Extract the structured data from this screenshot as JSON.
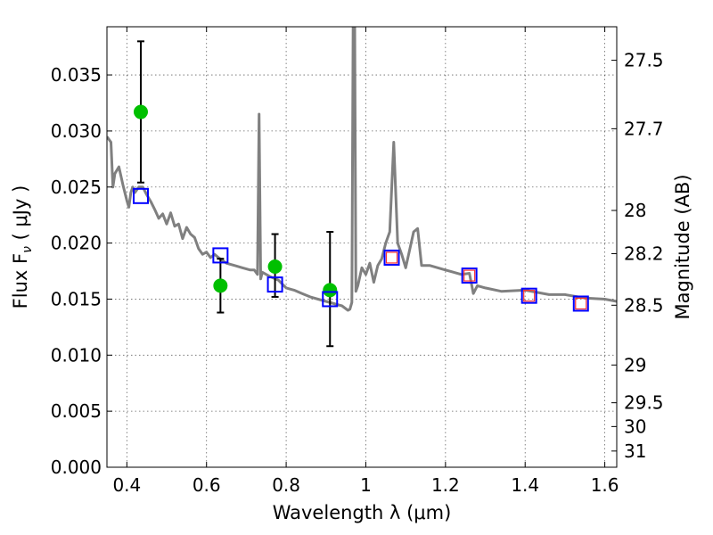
{
  "chart_data": {
    "type": "scatter",
    "xlabel": "Wavelength  λ (μm)",
    "ylabel": "Flux  F",
    "ylabel_sub": "ν",
    "ylabel_unit": " ( μJy )",
    "y2label": "Magnitude (AB)",
    "xlim": [
      0.35,
      1.63
    ],
    "ylim": [
      0.0,
      0.0393
    ],
    "grid": true,
    "x_ticks": [
      0.4,
      0.6,
      0.8,
      1.0,
      1.2,
      1.4,
      1.6
    ],
    "x_tick_labels": [
      "0.4",
      "0.6",
      "0.8",
      "1",
      "1.2",
      "1.4",
      "1.6"
    ],
    "y_ticks": [
      0.0,
      0.005,
      0.01,
      0.015,
      0.02,
      0.025,
      0.03,
      0.035
    ],
    "y_tick_labels": [
      "0.000",
      "0.005",
      "0.010",
      "0.015",
      "0.020",
      "0.025",
      "0.030",
      "0.035"
    ],
    "mag_ticks": [
      27.5,
      27.7,
      28,
      28.2,
      28.5,
      29,
      29.5,
      30,
      31
    ],
    "mag_tick_labels": [
      "27.5",
      "27.7",
      "28",
      "28.2",
      "28.5",
      "29",
      "29.5",
      "30",
      "31"
    ],
    "series": [
      {
        "kind": "line",
        "color": "#808080",
        "x": [
          0.35,
          0.36,
          0.365,
          0.37,
          0.38,
          0.39,
          0.4,
          0.405,
          0.41,
          0.415,
          0.42,
          0.43,
          0.44,
          0.45,
          0.46,
          0.47,
          0.48,
          0.49,
          0.5,
          0.51,
          0.52,
          0.53,
          0.54,
          0.55,
          0.56,
          0.57,
          0.58,
          0.59,
          0.6,
          0.61,
          0.62,
          0.63,
          0.65,
          0.67,
          0.69,
          0.71,
          0.72,
          0.728,
          0.732,
          0.736,
          0.74,
          0.76,
          0.78,
          0.8,
          0.82,
          0.84,
          0.86,
          0.88,
          0.9,
          0.92,
          0.94,
          0.955,
          0.96,
          0.965,
          0.968,
          0.97,
          0.972,
          0.975,
          0.98,
          0.99,
          1.0,
          1.01,
          1.02,
          1.03,
          1.04,
          1.05,
          1.06,
          1.07,
          1.08,
          1.09,
          1.1,
          1.12,
          1.13,
          1.14,
          1.16,
          1.2,
          1.24,
          1.26,
          1.27,
          1.28,
          1.3,
          1.34,
          1.4,
          1.46,
          1.5,
          1.55,
          1.6,
          1.63
        ],
        "y": [
          0.0295,
          0.029,
          0.025,
          0.0262,
          0.0268,
          0.0252,
          0.0238,
          0.0232,
          0.0245,
          0.025,
          0.0245,
          0.025,
          0.025,
          0.0243,
          0.0237,
          0.023,
          0.0222,
          0.0226,
          0.0217,
          0.0227,
          0.0215,
          0.0217,
          0.0204,
          0.0214,
          0.0208,
          0.0205,
          0.0195,
          0.019,
          0.0192,
          0.0187,
          0.019,
          0.0187,
          0.0182,
          0.018,
          0.0178,
          0.0176,
          0.0176,
          0.0172,
          0.0315,
          0.0168,
          0.0174,
          0.017,
          0.0167,
          0.016,
          0.0158,
          0.0155,
          0.0152,
          0.015,
          0.0148,
          0.0146,
          0.0144,
          0.014,
          0.0141,
          0.0147,
          0.0393,
          0.0393,
          0.0393,
          0.0157,
          0.0162,
          0.0178,
          0.0172,
          0.0182,
          0.0165,
          0.018,
          0.0186,
          0.02,
          0.021,
          0.029,
          0.02,
          0.019,
          0.0178,
          0.021,
          0.0213,
          0.018,
          0.018,
          0.0176,
          0.0172,
          0.0173,
          0.0155,
          0.0162,
          0.016,
          0.0157,
          0.0158,
          0.0154,
          0.0154,
          0.0151,
          0.015,
          0.0148
        ]
      },
      {
        "kind": "points",
        "marker": "circle",
        "color": "#00c000",
        "x": [
          0.435,
          0.635,
          0.772,
          0.91
        ],
        "y": [
          0.0317,
          0.0162,
          0.0179,
          0.0158
        ],
        "err_low": [
          0.0063,
          0.0024,
          0.0027,
          0.005
        ],
        "err_high": [
          0.0063,
          0.0024,
          0.0029,
          0.0052
        ]
      },
      {
        "kind": "points",
        "marker": "square",
        "color": "#0000ff",
        "x": [
          0.435,
          0.635,
          0.772,
          0.91,
          1.065,
          1.26,
          1.41,
          1.54
        ],
        "y": [
          0.0242,
          0.0189,
          0.0163,
          0.015,
          0.0187,
          0.0171,
          0.0153,
          0.0146
        ]
      },
      {
        "kind": "points",
        "marker": "square",
        "color": "#ff3030",
        "x": [
          1.065,
          1.26,
          1.41,
          1.54
        ],
        "y": [
          0.0187,
          0.0171,
          0.0153,
          0.0146
        ]
      }
    ]
  }
}
